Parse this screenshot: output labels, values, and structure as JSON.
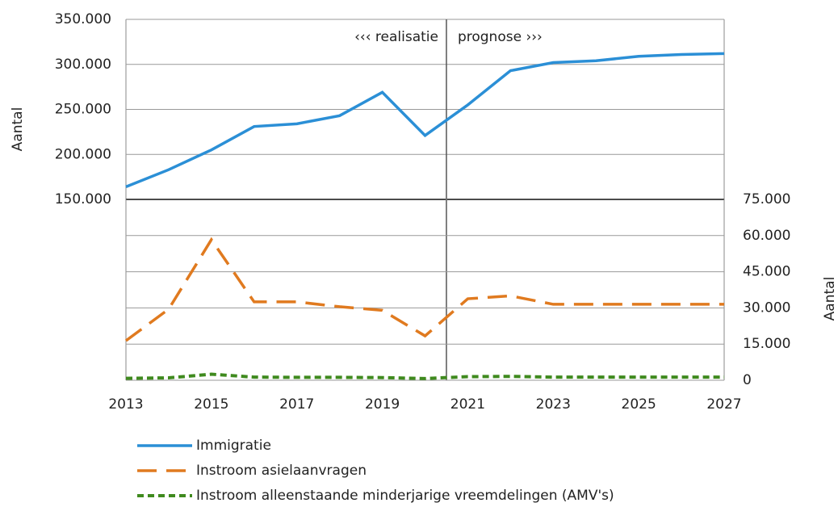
{
  "chart_data": [
    {
      "type": "line",
      "ylabel": "Aantal",
      "x": [
        2013,
        2014,
        2015,
        2016,
        2017,
        2018,
        2019,
        2020,
        2021,
        2022,
        2023,
        2024,
        2025,
        2026,
        2027
      ],
      "xlim": [
        2013,
        2027
      ],
      "ylim": [
        150000,
        350000
      ],
      "yticks": [
        {
          "value": 150000,
          "label": "150.000"
        },
        {
          "value": 200000,
          "label": "200.000"
        },
        {
          "value": 250000,
          "label": "250.000"
        },
        {
          "value": 300000,
          "label": "300.000"
        },
        {
          "value": 350000,
          "label": "350.000"
        }
      ],
      "grid": true,
      "divider": {
        "x": 2020.5,
        "left_label": "‹‹‹ realisatie",
        "right_label": "prognose ›››"
      },
      "series": [
        {
          "name": "Immigratie",
          "color": "#2b8fd6",
          "style": "solid",
          "values": [
            164000,
            183000,
            205000,
            231000,
            234000,
            243000,
            269000,
            221000,
            255000,
            293000,
            302000,
            304000,
            309000,
            311000,
            312000
          ]
        }
      ]
    },
    {
      "type": "line",
      "x": [
        2013,
        2014,
        2015,
        2016,
        2017,
        2018,
        2019,
        2020,
        2021,
        2022,
        2023,
        2024,
        2025,
        2026,
        2027
      ],
      "xlim": [
        2013,
        2027
      ],
      "xticks": [
        2013,
        2015,
        2017,
        2019,
        2021,
        2023,
        2025,
        2027
      ],
      "y2label": "Aantal",
      "y2lim": [
        0,
        75000
      ],
      "y2ticks": [
        0,
        {
          "value": 15000,
          "label": "15.000"
        },
        {
          "value": 30000,
          "label": "30.000"
        },
        {
          "value": 45000,
          "label": "45.000"
        },
        {
          "value": 60000,
          "label": "60.000"
        },
        {
          "value": 75000,
          "label": "75.000"
        }
      ],
      "grid": true,
      "series": [
        {
          "name": "Instroom asielaanvragen",
          "color": "#e07a1f",
          "style": "dashed",
          "axis": "y2",
          "values": [
            16400,
            29500,
            58300,
            32500,
            32500,
            30500,
            29000,
            18400,
            33800,
            35000,
            31500,
            31500,
            31500,
            31500,
            31500
          ]
        },
        {
          "name": "Instroom alleenstaande minderjarige vreemdelingen (AMV's)",
          "color": "#3f8a1e",
          "style": "dotted",
          "axis": "y2",
          "values": [
            800,
            1000,
            2500,
            1300,
            1200,
            1200,
            1100,
            700,
            1500,
            1600,
            1300,
            1300,
            1300,
            1300,
            1300
          ]
        }
      ]
    }
  ]
}
